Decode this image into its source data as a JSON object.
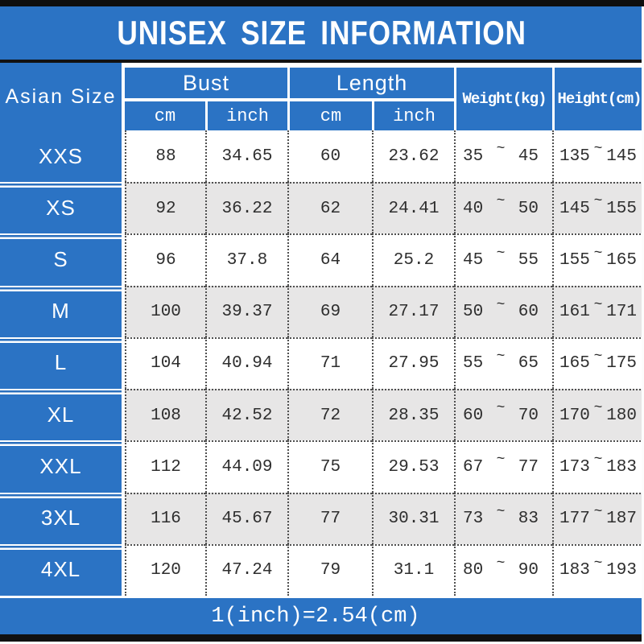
{
  "title": "UNISEX SIZE INFORMATION",
  "header": {
    "corner": "Asian Size",
    "bust": "Bust",
    "length": "Length",
    "cm": "cm",
    "inch": "inch",
    "weight": "Weight(kg)",
    "height": "Height(cm)"
  },
  "tilde": "~",
  "table": {
    "rows": [
      {
        "size": "XXS",
        "bust_cm": "88",
        "bust_inch": "34.65",
        "length_cm": "60",
        "length_inch": "23.62",
        "weight_min": "35",
        "weight_max": "45",
        "height_min": "135",
        "height_max": "145"
      },
      {
        "size": "XS",
        "bust_cm": "92",
        "bust_inch": "36.22",
        "length_cm": "62",
        "length_inch": "24.41",
        "weight_min": "40",
        "weight_max": "50",
        "height_min": "145",
        "height_max": "155"
      },
      {
        "size": "S",
        "bust_cm": "96",
        "bust_inch": "37.8",
        "length_cm": "64",
        "length_inch": "25.2",
        "weight_min": "45",
        "weight_max": "55",
        "height_min": "155",
        "height_max": "165"
      },
      {
        "size": "M",
        "bust_cm": "100",
        "bust_inch": "39.37",
        "length_cm": "69",
        "length_inch": "27.17",
        "weight_min": "50",
        "weight_max": "60",
        "height_min": "161",
        "height_max": "171"
      },
      {
        "size": "L",
        "bust_cm": "104",
        "bust_inch": "40.94",
        "length_cm": "71",
        "length_inch": "27.95",
        "weight_min": "55",
        "weight_max": "65",
        "height_min": "165",
        "height_max": "175"
      },
      {
        "size": "XL",
        "bust_cm": "108",
        "bust_inch": "42.52",
        "length_cm": "72",
        "length_inch": "28.35",
        "weight_min": "60",
        "weight_max": "70",
        "height_min": "170",
        "height_max": "180"
      },
      {
        "size": "XXL",
        "bust_cm": "112",
        "bust_inch": "44.09",
        "length_cm": "75",
        "length_inch": "29.53",
        "weight_min": "67",
        "weight_max": "77",
        "height_min": "173",
        "height_max": "183"
      },
      {
        "size": "3XL",
        "bust_cm": "116",
        "bust_inch": "45.67",
        "length_cm": "77",
        "length_inch": "30.31",
        "weight_min": "73",
        "weight_max": "83",
        "height_min": "177",
        "height_max": "187"
      },
      {
        "size": "4XL",
        "bust_cm": "120",
        "bust_inch": "47.24",
        "length_cm": "79",
        "length_inch": "31.1",
        "weight_min": "80",
        "weight_max": "90",
        "height_min": "183",
        "height_max": "193"
      }
    ]
  },
  "footer": {
    "note": "1(inch)=2.54(cm)"
  },
  "colors": {
    "accent_blue": "#2b73c4",
    "alt_row_gray": "#e7e6e6",
    "border_black": "#0e0e0e",
    "text_white": "#ffffff",
    "text_dark": "#2e2e2e"
  }
}
